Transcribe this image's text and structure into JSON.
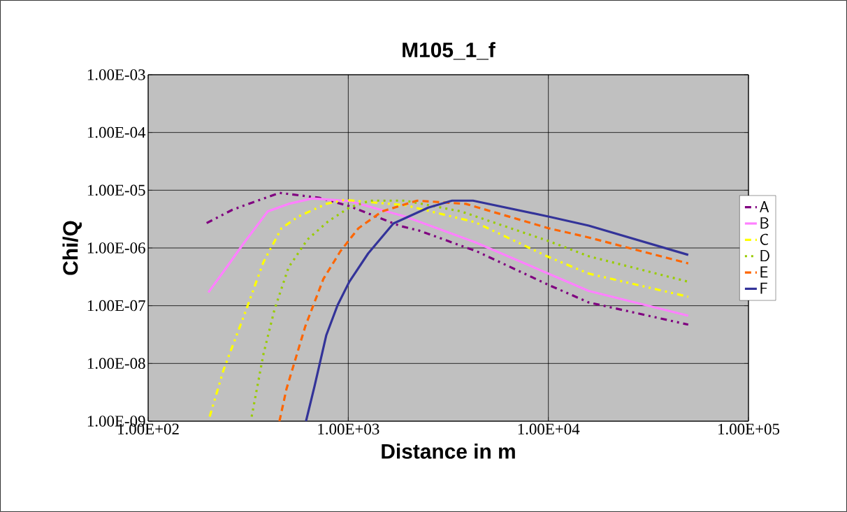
{
  "chart_data": {
    "type": "line",
    "title": "M105_1_f",
    "xlabel": "Distance in m",
    "ylabel": "Chi/Q",
    "log": "xy",
    "grid": true,
    "legend": "right",
    "xlim": [
      100,
      100000
    ],
    "ylim": [
      1e-09,
      0.001
    ],
    "xticks": [
      {
        "value": 100,
        "label": "1.00E+02"
      },
      {
        "value": 1000,
        "label": "1.00E+03"
      },
      {
        "value": 10000,
        "label": "1.00E+04"
      },
      {
        "value": 100000,
        "label": "1.00E+05"
      }
    ],
    "yticks": [
      {
        "value": 1e-09,
        "label": "1.00E-09"
      },
      {
        "value": 1e-08,
        "label": "1.00E-08"
      },
      {
        "value": 1e-07,
        "label": "1.00E-07"
      },
      {
        "value": 1e-06,
        "label": "1.00E-06"
      },
      {
        "value": 1e-05,
        "label": "1.00E-05"
      },
      {
        "value": 0.0001,
        "label": "1.00E-04"
      },
      {
        "value": 0.001,
        "label": "1.00E-03"
      }
    ],
    "series": [
      {
        "name": "A",
        "color": "#800080",
        "line_style": "dashdotted",
        "x": [
          196,
          264,
          453,
          716,
          1012,
          1820,
          2260,
          4400,
          10000,
          15900,
          50000
        ],
        "values": [
          2.7e-06,
          4.6e-06,
          9e-06,
          7.4e-06,
          5.3e-06,
          2.4e-06,
          2e-06,
          8.7e-07,
          2.3e-07,
          1.14e-07,
          4.7e-08
        ]
      },
      {
        "name": "B",
        "color": "#ff80ff",
        "line_style": "solid",
        "x": [
          200,
          244,
          303,
          396,
          503,
          661,
          1012,
          1923,
          4300,
          10000,
          15900,
          50000
        ],
        "values": [
          1.7e-07,
          4.4e-07,
          1.26e-06,
          4.3e-06,
          5.8e-06,
          7.2e-06,
          6.5e-06,
          3.5e-06,
          1.26e-06,
          3.6e-07,
          1.8e-07,
          6.7e-08
        ]
      },
      {
        "name": "C",
        "color": "#ffff00",
        "line_style": "dashdotted",
        "x": [
          203,
          238,
          303,
          377,
          464,
          563,
          777,
          957,
          1923,
          4300,
          10000,
          15900,
          50000
        ],
        "values": [
          1.2e-09,
          7.7e-09,
          7.1e-08,
          5.7e-07,
          2.2e-06,
          3.5e-06,
          5.8e-06,
          6.8e-06,
          5.5e-06,
          2.8e-06,
          7e-07,
          3.6e-07,
          1.43e-07
        ]
      },
      {
        "name": "D",
        "color": "#99cc00",
        "line_style": "dotted",
        "x": [
          329,
          377,
          428,
          503,
          625,
          795,
          1012,
          1288,
          1923,
          3660,
          10000,
          15900,
          50000
        ],
        "values": [
          1.2e-09,
          1.46e-08,
          8.6e-08,
          4.6e-07,
          1.4e-06,
          2.9e-06,
          5e-06,
          6.6e-06,
          6.6e-06,
          4.3e-06,
          1.32e-06,
          7.2e-07,
          2.6e-07
        ]
      },
      {
        "name": "E",
        "color": "#ff6600",
        "line_style": "dashed",
        "x": [
          453,
          491,
          610,
          751,
          912,
          1125,
          1476,
          2208,
          3870,
          10000,
          15900,
          50000
        ],
        "values": [
          1e-09,
          3.6e-09,
          4.4e-08,
          2.9e-07,
          8.7e-07,
          2.2e-06,
          4.3e-06,
          6.6e-06,
          5.8e-06,
          2.2e-06,
          1.52e-06,
          5.4e-07
        ]
      },
      {
        "name": "F",
        "color": "#333399",
        "line_style": "solid",
        "x": [
          615,
          678,
          777,
          884,
          1012,
          1256,
          1680,
          2510,
          3300,
          4200,
          10000,
          15900,
          50000
        ],
        "values": [
          1e-09,
          4e-09,
          3.1e-08,
          1.02e-07,
          2.6e-07,
          8e-07,
          2.65e-06,
          5e-06,
          6.6e-06,
          6.6e-06,
          3.5e-06,
          2.44e-06,
          7.6e-07
        ]
      }
    ]
  }
}
